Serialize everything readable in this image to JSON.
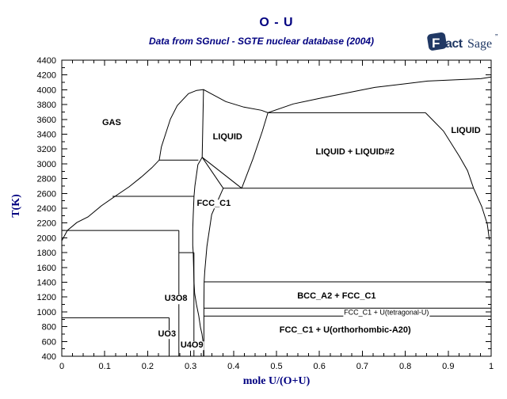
{
  "header": {
    "title": "O - U",
    "subtitle": "Data from SGnucl - SGTE nuclear database (2004)"
  },
  "logo": {
    "f": "F",
    "act": "act",
    "sage": "Sage",
    "tm": "”"
  },
  "colors": {
    "accent": "#000080",
    "logo_navy": "#203864",
    "line": "#000000",
    "background": "#ffffff"
  },
  "chart_data": {
    "type": "line",
    "subtype": "phase-diagram",
    "title": "O - U",
    "xlabel": "mole U/(O+U)",
    "ylabel": "T(K)",
    "xlim": [
      0,
      1
    ],
    "ylim": [
      400,
      4400
    ],
    "grid": false,
    "x_ticks": {
      "major_step": 0.1,
      "minor_step": 0.025,
      "labels": [
        "0",
        "0.1",
        "0.2",
        "0.3",
        "0.4",
        "0.5",
        "0.6",
        "0.7",
        "0.8",
        "0.9",
        "1"
      ]
    },
    "y_ticks": {
      "major_step": 200,
      "minor_step": 100,
      "labels": [
        "400",
        "600",
        "800",
        "1000",
        "1200",
        "1400",
        "1600",
        "1800",
        "2000",
        "2200",
        "2400",
        "2600",
        "2800",
        "3000",
        "3200",
        "3400",
        "3600",
        "3800",
        "4000",
        "4200",
        "4400"
      ]
    },
    "regions": [
      {
        "label": "GAS",
        "x": 0.116,
        "T": 3545,
        "size": 11,
        "bold": true
      },
      {
        "label": "LIQUID",
        "x": 0.386,
        "T": 3350,
        "size": 11,
        "bold": true
      },
      {
        "label": "LIQUID + LIQUID#2",
        "x": 0.683,
        "T": 3150,
        "size": 11,
        "bold": true
      },
      {
        "label": "LIQUID",
        "x": 0.941,
        "T": 3435,
        "size": 11,
        "bold": true
      },
      {
        "label": "FCC_C1",
        "x": 0.354,
        "T": 2455,
        "size": 11,
        "bold": true
      },
      {
        "label": "BCC_A2 + FCC_C1",
        "x": 0.64,
        "T": 1200,
        "size": 11,
        "bold": true
      },
      {
        "label": "FCC_C1 + U(tetragonal-U)",
        "x": 0.756,
        "T": 985,
        "size": 9,
        "bold": false
      },
      {
        "label": "FCC_C1 + U(orthorhombic-A20)",
        "x": 0.66,
        "T": 740,
        "size": 11,
        "bold": true
      },
      {
        "label": "U3O8",
        "x": 0.266,
        "T": 1170,
        "size": 11,
        "bold": true
      },
      {
        "label": "UO3",
        "x": 0.245,
        "T": 690,
        "size": 11,
        "bold": true
      },
      {
        "label": "U4O9",
        "x": 0.303,
        "T": 540,
        "size": 11,
        "bold": true
      }
    ],
    "boundaries": [
      {
        "name": "gas-liquid-boundary",
        "points": [
          [
            0.0,
            1960
          ],
          [
            0.013,
            2100
          ],
          [
            0.035,
            2206
          ],
          [
            0.061,
            2282
          ],
          [
            0.092,
            2432
          ],
          [
            0.124,
            2560
          ],
          [
            0.157,
            2690
          ],
          [
            0.185,
            2820
          ],
          [
            0.21,
            2948
          ],
          [
            0.227,
            3050
          ],
          [
            0.232,
            3228
          ],
          [
            0.242,
            3410
          ],
          [
            0.253,
            3604
          ],
          [
            0.269,
            3787
          ],
          [
            0.295,
            3948
          ],
          [
            0.314,
            3991
          ],
          [
            0.33,
            4002
          ],
          [
            0.354,
            3927
          ],
          [
            0.382,
            3841
          ],
          [
            0.424,
            3766
          ],
          [
            0.465,
            3723
          ],
          [
            0.48,
            3690
          ],
          [
            0.539,
            3809
          ],
          [
            0.607,
            3892
          ],
          [
            0.729,
            4032
          ],
          [
            0.852,
            4118
          ],
          [
            0.976,
            4150
          ],
          [
            1.0,
            4172
          ]
        ]
      },
      {
        "name": "uo2-congruent-line",
        "points": [
          [
            0.33,
            4002
          ],
          [
            0.327,
            3088
          ]
        ]
      },
      {
        "name": "fcc-solidus-right",
        "points": [
          [
            0.327,
            3088
          ],
          [
            0.376,
            2669
          ]
        ]
      },
      {
        "name": "fcc-liquidus-right",
        "points": [
          [
            0.327,
            3088
          ],
          [
            0.419,
            2669
          ]
        ]
      },
      {
        "name": "miscibility-gap-left",
        "points": [
          [
            0.419,
            2669
          ],
          [
            0.445,
            3064
          ],
          [
            0.467,
            3439
          ],
          [
            0.48,
            3690
          ]
        ]
      },
      {
        "name": "monotectic-3690",
        "points": [
          [
            0.48,
            3690
          ],
          [
            0.847,
            3690
          ]
        ]
      },
      {
        "name": "miscibility-gap-right",
        "points": [
          [
            0.847,
            3690
          ],
          [
            0.889,
            3443
          ],
          [
            0.926,
            3100
          ],
          [
            0.945,
            2907
          ],
          [
            0.959,
            2669
          ]
        ]
      },
      {
        "name": "liquidus-right-lower",
        "points": [
          [
            0.959,
            2669
          ],
          [
            0.978,
            2422
          ],
          [
            0.991,
            2186
          ],
          [
            0.996,
            1971
          ]
        ]
      },
      {
        "name": "monotectic-2670",
        "points": [
          [
            0.376,
            2669
          ],
          [
            0.959,
            2669
          ]
        ]
      },
      {
        "name": "fcc-right-boundary",
        "points": [
          [
            0.376,
            2669
          ],
          [
            0.349,
            2314
          ],
          [
            0.338,
            1884
          ],
          [
            0.333,
            1550
          ],
          [
            0.3315,
            1405
          ],
          [
            0.331,
            1100
          ],
          [
            0.331,
            400
          ]
        ]
      },
      {
        "name": "fcc-left-boundary",
        "points": [
          [
            0.327,
            3088
          ],
          [
            0.317,
            2988
          ],
          [
            0.31,
            2700
          ],
          [
            0.308,
            2560
          ],
          [
            0.306,
            2300
          ],
          [
            0.305,
            2120
          ],
          [
            0.305,
            1900
          ],
          [
            0.306,
            1800
          ],
          [
            0.307,
            1600
          ],
          [
            0.308,
            1405
          ],
          [
            0.3095,
            1250
          ],
          [
            0.3137,
            1100
          ],
          [
            0.319,
            947
          ],
          [
            0.323,
            787
          ],
          [
            0.3266,
            700
          ],
          [
            0.329,
            594
          ],
          [
            0.33,
            500
          ],
          [
            0.33,
            400
          ]
        ]
      },
      {
        "name": "u-melting-1405",
        "points": [
          [
            0.331,
            1405
          ],
          [
            1,
            1405
          ]
        ]
      },
      {
        "name": "u-tetragonal-1049",
        "points": [
          [
            0.331,
            1049
          ],
          [
            1,
            1049
          ]
        ]
      },
      {
        "name": "u-orthorhombic-942",
        "points": [
          [
            0.331,
            942
          ],
          [
            1,
            942
          ]
        ]
      },
      {
        "name": "tie-line-3050",
        "points": [
          [
            0.227,
            3050
          ],
          [
            0.318,
            3050
          ]
        ]
      },
      {
        "name": "tie-line-2560",
        "points": [
          [
            0.118,
            2560
          ],
          [
            0.308,
            2560
          ]
        ]
      },
      {
        "name": "tie-line-2100",
        "points": [
          [
            0.0,
            2100
          ],
          [
            0.2727,
            2100
          ]
        ]
      },
      {
        "name": "u3o8-line",
        "points": [
          [
            0.2727,
            2100
          ],
          [
            0.2727,
            400
          ]
        ]
      },
      {
        "name": "u4o9-top",
        "points": [
          [
            0.2727,
            1800
          ],
          [
            0.3077,
            1800
          ]
        ]
      },
      {
        "name": "u4o9-line",
        "points": [
          [
            0.3077,
            1800
          ],
          [
            0.3077,
            400
          ]
        ]
      },
      {
        "name": "uo3-top",
        "points": [
          [
            0.0,
            920
          ],
          [
            0.25,
            920
          ]
        ]
      },
      {
        "name": "uo3-line",
        "points": [
          [
            0.25,
            920
          ],
          [
            0.25,
            400
          ]
        ]
      }
    ]
  }
}
